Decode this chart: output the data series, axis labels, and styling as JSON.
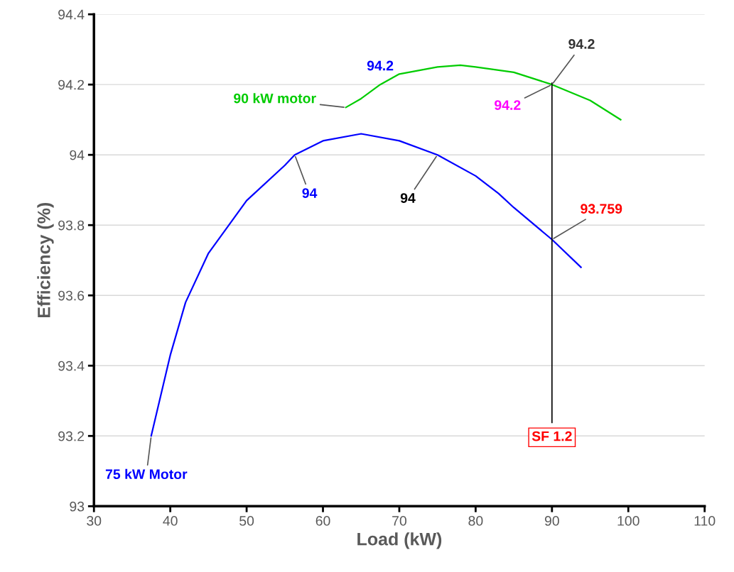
{
  "chart_data": {
    "type": "line",
    "xlabel": "Load (kW)",
    "ylabel": "Efficiency (%)",
    "xlim": [
      30,
      110
    ],
    "xticks": [
      30,
      40,
      50,
      60,
      70,
      80,
      90,
      100,
      110
    ],
    "ylim": [
      93,
      94.4
    ],
    "yticks": [
      93,
      93.2,
      93.4,
      93.6,
      93.8,
      94,
      94.2,
      94.4
    ],
    "grid": "y",
    "legend": false,
    "marker": "none",
    "line_style": "solid",
    "series": [
      {
        "name": "75 kW Motor",
        "color": "#0000ff",
        "x": [
          37.5,
          40,
          42,
          45,
          50,
          55,
          56.3,
          60,
          65,
          70,
          75,
          80,
          83,
          85,
          90,
          93.8
        ],
        "values": [
          93.2,
          93.43,
          93.58,
          93.72,
          93.87,
          93.97,
          94.0,
          94.04,
          94.06,
          94.04,
          94.0,
          93.94,
          93.89,
          93.85,
          93.759,
          93.68
        ]
      },
      {
        "name": "90 kW motor",
        "color": "#00cc00",
        "x": [
          63,
          65,
          67.5,
          70,
          75,
          78,
          80,
          85,
          90,
          95,
          99
        ],
        "values": [
          94.135,
          94.16,
          94.2,
          94.23,
          94.25,
          94.255,
          94.25,
          94.235,
          94.2,
          94.155,
          94.1
        ]
      }
    ],
    "ref_lines": [
      {
        "axis": "x",
        "value": 90,
        "label": "SF 1.2",
        "color": "#000000"
      }
    ],
    "annotations": [
      {
        "text": "94.2",
        "x": 67.5,
        "y": 94.2
      },
      {
        "text": "94.2",
        "x": 90,
        "y": 94.2
      },
      {
        "text": "94.2",
        "x": 90,
        "y": 94.2
      },
      {
        "text": "94",
        "x": 56.3,
        "y": 94
      },
      {
        "text": "94",
        "x": 75,
        "y": 94
      },
      {
        "text": "93.759",
        "x": 90,
        "y": 93.759
      }
    ]
  }
}
